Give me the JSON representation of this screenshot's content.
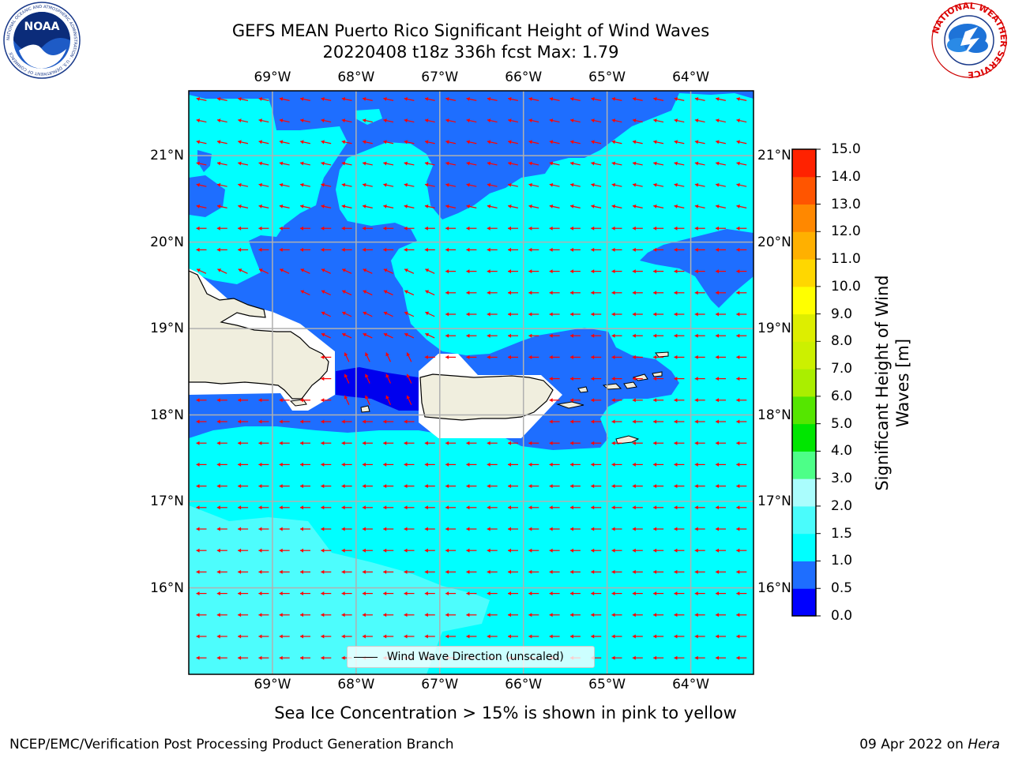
{
  "title_line1": "GEFS MEAN Puerto Rico Significant Height of Wind Waves",
  "title_line2": "20220408 t18z 336h fcst   Max: 1.79",
  "lon_labels": [
    "69°W",
    "68°W",
    "67°W",
    "66°W",
    "65°W",
    "64°W"
  ],
  "lat_labels": [
    "21°N",
    "20°N",
    "19°N",
    "18°N",
    "17°N",
    "16°N"
  ],
  "colorbar": {
    "title": "Significant Height of Wind Waves [m]",
    "tick_labels": [
      "0.0",
      "0.5",
      "1.0",
      "1.5",
      "2.0",
      "3.0",
      "4.0",
      "5.0",
      "6.0",
      "7.0",
      "8.0",
      "9.0",
      "10.0",
      "11.0",
      "12.0",
      "13.0",
      "14.0",
      "15.0"
    ],
    "colors": [
      "#0000ff",
      "#1e6eff",
      "#00ffff",
      "#4afcfc",
      "#aafdfd",
      "#4dff88",
      "#00e600",
      "#55e600",
      "#aaee00",
      "#ccf000",
      "#ddee00",
      "#ffff00",
      "#ffd700",
      "#ffb000",
      "#ff8800",
      "#ff5500",
      "#ff2200",
      "#ff0000"
    ]
  },
  "legend_label": "Wind Wave Direction (unscaled)",
  "caption": "Sea Ice Concentration > 15% is shown in pink to yellow",
  "footer_left": "NCEP/EMC/Verification Post Processing Product Generation Branch",
  "footer_date": "09 Apr 2022 on",
  "footer_host": "Hera",
  "logos": {
    "left": {
      "name": "NOAA",
      "ring_text": "NATIONAL OCEANIC AND ATMOSPHERIC ADMINISTRATION · U.S. DEPARTMENT OF COMMERCE"
    },
    "right": {
      "ring_text": "NATIONAL WEATHER SERVICE"
    }
  },
  "map_colors": {
    "land": "#f0eede",
    "bright_cyan": "#00ffff",
    "light_cyan": "#4dfdfd",
    "mid_blue": "#1e6eff",
    "dark_blue": "#0000ee",
    "arrow": "#ff0000",
    "grid": "#b0b0b0"
  },
  "map_region": {
    "lon_range": [
      -70.0,
      -63.25
    ],
    "lat_range": [
      15.0,
      21.75
    ]
  }
}
